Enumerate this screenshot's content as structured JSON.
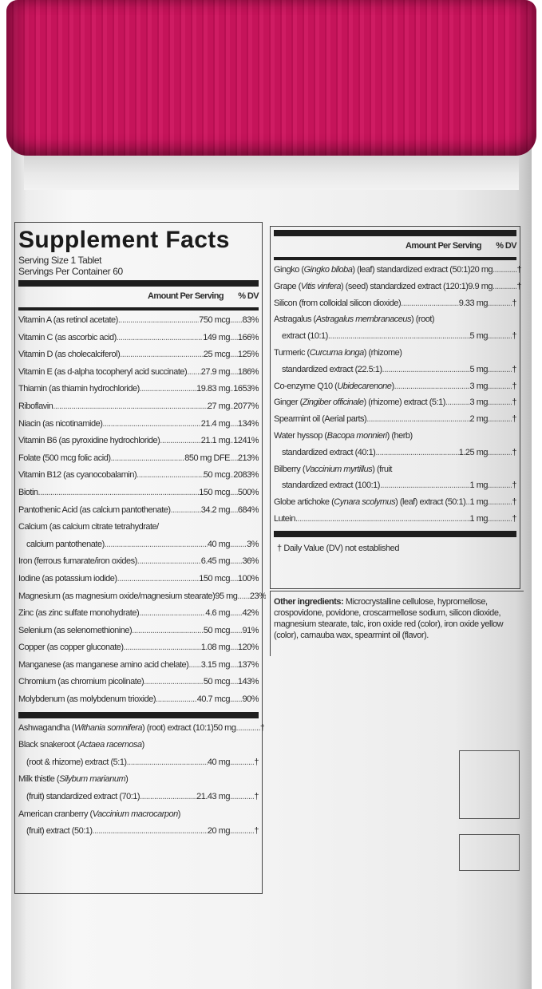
{
  "label": {
    "title": "Supplement Facts",
    "serving_size": "Serving Size 1 Tablet",
    "servings_per_container": "Servings Per Container 60",
    "header_amount": "Amount Per Serving",
    "header_dv": "% DV",
    "vitamins_minerals": [
      {
        "name": [
          {
            "t": "Vitamin A (as retinol acetate)"
          }
        ],
        "amount": "750 mcg",
        "dv": "83%"
      },
      {
        "name": [
          {
            "t": "Vitamin C (as ascorbic acid)"
          }
        ],
        "amount": "149 mg",
        "dv": "166%"
      },
      {
        "name": [
          {
            "t": "Vitamin D (as cholecalciferol)"
          }
        ],
        "amount": "25 mcg",
        "dv": "125%"
      },
      {
        "name": [
          {
            "t": "Vitamin E (as d-alpha tocopheryl acid succinate)"
          }
        ],
        "amount": "27.9 mg",
        "dv": "186%"
      },
      {
        "name": [
          {
            "t": "Thiamin (as thiamin hydrochloride)"
          }
        ],
        "amount": "19.83 mg",
        "dv": "1653%"
      },
      {
        "name": [
          {
            "t": "Riboflavin"
          }
        ],
        "amount": "27 mg",
        "dv": "2077%"
      },
      {
        "name": [
          {
            "t": "Niacin (as nicotinamide)"
          }
        ],
        "amount": "21.4 mg",
        "dv": "134%"
      },
      {
        "name": [
          {
            "t": "Vitamin B6 (as pyroxidine hydrochloride)"
          }
        ],
        "amount": "21.1 mg",
        "dv": "1241%"
      },
      {
        "name": [
          {
            "t": "Folate (500 mcg folic acid)"
          }
        ],
        "amount": "850 mg DFE",
        "dv": "213%"
      },
      {
        "name": [
          {
            "t": "Vitamin B12 (as cyanocobalamin)"
          }
        ],
        "amount": "50 mcg",
        "dv": "2083%"
      },
      {
        "name": [
          {
            "t": "Biotin"
          }
        ],
        "amount": "150 mcg",
        "dv": "500%"
      },
      {
        "name": [
          {
            "t": "Pantothenic Acid (as calcium pantothenate)"
          }
        ],
        "amount": "34.2 mg",
        "dv": "684%"
      },
      {
        "name": [
          {
            "t": "Calcium (as calcium citrate tetrahydrate/"
          }
        ],
        "cont": [
          {
            "t": "calcium pantothenate)"
          }
        ],
        "amount": "40 mg",
        "dv": "3%"
      },
      {
        "name": [
          {
            "t": "Iron (ferrous fumarate/iron oxides)"
          }
        ],
        "amount": "6.45 mg",
        "dv": "36%"
      },
      {
        "name": [
          {
            "t": "Iodine (as potassium iodide)"
          }
        ],
        "amount": "150 mcg",
        "dv": "100%"
      },
      {
        "name": [
          {
            "t": "Magnesium (as magnesium oxide/magnesium stearate)"
          }
        ],
        "amount": "95 mg",
        "dv": "23%"
      },
      {
        "name": [
          {
            "t": "Zinc (as zinc sulfate monohydrate)"
          }
        ],
        "amount": "4.6 mg",
        "dv": "42%"
      },
      {
        "name": [
          {
            "t": "Selenium (as selenomethionine)"
          }
        ],
        "amount": "50 mcg",
        "dv": "91%"
      },
      {
        "name": [
          {
            "t": "Copper (as copper gluconate)"
          }
        ],
        "amount": "1.08 mg",
        "dv": "120%"
      },
      {
        "name": [
          {
            "t": "Manganese (as manganese amino acid chelate)"
          }
        ],
        "amount": "3.15 mg",
        "dv": "137%"
      },
      {
        "name": [
          {
            "t": "Chromium (as chromium picolinate)"
          }
        ],
        "amount": "50 mcg",
        "dv": "143%"
      },
      {
        "name": [
          {
            "t": "Molybdenum (as molybdenum trioxide)"
          }
        ],
        "amount": "40.7 mcg",
        "dv": "90%"
      }
    ],
    "botanicals_left": [
      {
        "name": [
          {
            "t": "Ashwagandha ("
          },
          {
            "t": "Withania somnifera",
            "i": true
          },
          {
            "t": ") (root) extract (10:1)"
          }
        ],
        "amount": "50 mg",
        "dv": "†"
      },
      {
        "name": [
          {
            "t": "Black snakeroot ("
          },
          {
            "t": "Actaea racemosa",
            "i": true
          },
          {
            "t": ")"
          }
        ],
        "cont": [
          {
            "t": "(root & rhizome) extract (5:1)"
          }
        ],
        "amount": "40 mg",
        "dv": "†"
      },
      {
        "name": [
          {
            "t": "Milk thistle ("
          },
          {
            "t": "Silybum marianum",
            "i": true
          },
          {
            "t": ")"
          }
        ],
        "cont": [
          {
            "t": "(fruit) standardized extract (70:1)"
          }
        ],
        "amount": "21.43 mg",
        "dv": "†"
      },
      {
        "name": [
          {
            "t": "American cranberry ("
          },
          {
            "t": "Vaccinium macrocarpon",
            "i": true
          },
          {
            "t": ")"
          }
        ],
        "cont": [
          {
            "t": "(fruit) extract (50:1)"
          }
        ],
        "amount": "20 mg",
        "dv": "†"
      }
    ],
    "botanicals_right": [
      {
        "name": [
          {
            "t": "Gingko ("
          },
          {
            "t": "Gingko biloba",
            "i": true
          },
          {
            "t": ") (leaf) standardized extract (50:1)"
          }
        ],
        "amount": "20 mg",
        "dv": "†"
      },
      {
        "name": [
          {
            "t": "Grape ("
          },
          {
            "t": "Vitis vinfera",
            "i": true
          },
          {
            "t": ") (seed) standardized extract (120:1)"
          }
        ],
        "amount": "9.9 mg",
        "dv": "†"
      },
      {
        "name": [
          {
            "t": "Silicon (from colloidal silicon dioxide)"
          }
        ],
        "amount": "9.33 mg",
        "dv": "†"
      },
      {
        "name": [
          {
            "t": "Astragalus ("
          },
          {
            "t": "Astragalus membranaceus",
            "i": true
          },
          {
            "t": ") (root)"
          }
        ],
        "cont": [
          {
            "t": "extract (10:1)"
          }
        ],
        "amount": "5 mg",
        "dv": "†"
      },
      {
        "name": [
          {
            "t": "Turmeric ("
          },
          {
            "t": "Curcuma longa",
            "i": true
          },
          {
            "t": ") (rhizome)"
          }
        ],
        "cont": [
          {
            "t": "standardized extract (22.5:1)"
          }
        ],
        "amount": "5 mg",
        "dv": "†"
      },
      {
        "name": [
          {
            "t": "Co-enzyme Q10 ("
          },
          {
            "t": "Ubidecarenone",
            "i": true
          },
          {
            "t": ")"
          }
        ],
        "amount": "3 mg",
        "dv": "†"
      },
      {
        "name": [
          {
            "t": "Ginger ("
          },
          {
            "t": "Zingiber officinale",
            "i": true
          },
          {
            "t": ") (rhizome) extract (5:1)"
          }
        ],
        "amount": "3 mg",
        "dv": "†"
      },
      {
        "name": [
          {
            "t": "Spearmint oil (Aerial parts)"
          }
        ],
        "amount": "2 mg",
        "dv": "†"
      },
      {
        "name": [
          {
            "t": "Water hyssop ("
          },
          {
            "t": "Bacopa monnieri",
            "i": true
          },
          {
            "t": ") (herb)"
          }
        ],
        "cont": [
          {
            "t": "standardized extract (40:1)"
          }
        ],
        "amount": "1.25 mg",
        "dv": "†"
      },
      {
        "name": [
          {
            "t": "Bilberry ("
          },
          {
            "t": "Vaccinium myrtillus",
            "i": true
          },
          {
            "t": ") (fruit"
          }
        ],
        "cont": [
          {
            "t": "standardized extract (100:1)"
          }
        ],
        "amount": "1 mg",
        "dv": "†"
      },
      {
        "name": [
          {
            "t": "Globe artichoke ("
          },
          {
            "t": "Cynara scolymus",
            "i": true
          },
          {
            "t": ") (leaf) extract (50:1)"
          }
        ],
        "amount": "1 mg",
        "dv": "†"
      },
      {
        "name": [
          {
            "t": "Lutein"
          }
        ],
        "amount": "1 mg",
        "dv": "†"
      }
    ],
    "footnote": "† Daily Value (DV) not established",
    "other_ingredients_label": "Other ingredients:",
    "other_ingredients": " Microcrystalline cellulose, hypromellose, crospovidone, povidone, croscarmellose sodium, silicon dioxide, magnesium stearate, talc, iron oxide red (color), iron oxide yellow (color), carnauba wax, spearmint oil (flavor)."
  },
  "colors": {
    "cap": "#c5145a",
    "bottle": "#f3f3f3",
    "text": "#2a2a2a"
  }
}
